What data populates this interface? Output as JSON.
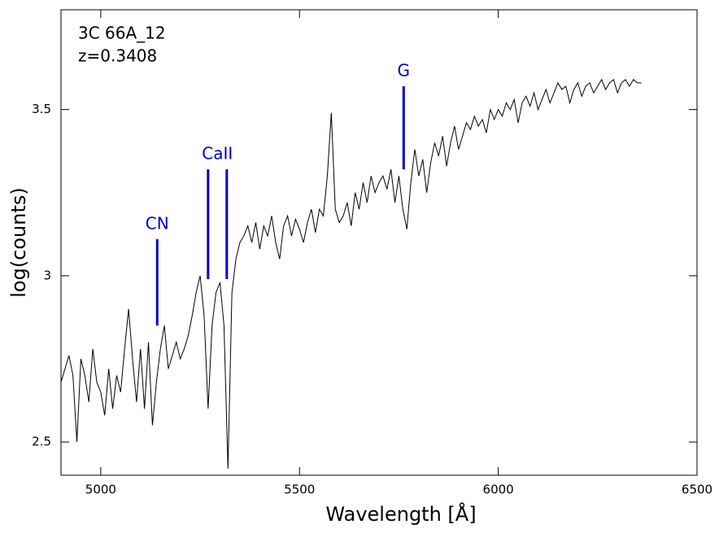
{
  "chart_data": {
    "type": "line",
    "title_lines": [
      "3C 66A_12",
      "z=0.3408"
    ],
    "x_label": "Wavelength [Å]",
    "y_label": "log(counts)",
    "xlim": [
      4900,
      6500
    ],
    "ylim": [
      2.4,
      3.8
    ],
    "xticks": [
      5000,
      5500,
      6000,
      6500
    ],
    "yticks": [
      2.5,
      3,
      3.5
    ],
    "color": "#000000",
    "marker_color": "#0000cc",
    "x": [
      4900,
      4910,
      4920,
      4930,
      4940,
      4950,
      4960,
      4970,
      4980,
      4990,
      5000,
      5010,
      5020,
      5030,
      5040,
      5050,
      5060,
      5070,
      5080,
      5090,
      5100,
      5110,
      5120,
      5130,
      5140,
      5150,
      5160,
      5170,
      5180,
      5190,
      5200,
      5210,
      5220,
      5230,
      5240,
      5250,
      5260,
      5270,
      5280,
      5290,
      5300,
      5310,
      5320,
      5330,
      5340,
      5350,
      5360,
      5370,
      5380,
      5390,
      5400,
      5410,
      5420,
      5430,
      5440,
      5450,
      5460,
      5470,
      5480,
      5490,
      5500,
      5510,
      5520,
      5530,
      5540,
      5550,
      5560,
      5570,
      5580,
      5590,
      5600,
      5610,
      5620,
      5630,
      5640,
      5650,
      5660,
      5670,
      5680,
      5690,
      5700,
      5710,
      5720,
      5730,
      5740,
      5750,
      5760,
      5770,
      5780,
      5790,
      5800,
      5810,
      5820,
      5830,
      5840,
      5850,
      5860,
      5870,
      5880,
      5890,
      5900,
      5910,
      5920,
      5930,
      5940,
      5950,
      5960,
      5970,
      5980,
      5990,
      6000,
      6010,
      6020,
      6030,
      6040,
      6050,
      6060,
      6070,
      6080,
      6090,
      6100,
      6110,
      6120,
      6130,
      6140,
      6150,
      6160,
      6170,
      6180,
      6190,
      6200,
      6210,
      6220,
      6230,
      6240,
      6250,
      6260,
      6270,
      6280,
      6290,
      6300,
      6310,
      6320,
      6330,
      6340,
      6350,
      6360
    ],
    "values": [
      2.68,
      2.72,
      2.76,
      2.7,
      2.5,
      2.75,
      2.7,
      2.62,
      2.78,
      2.68,
      2.65,
      2.58,
      2.72,
      2.6,
      2.7,
      2.65,
      2.78,
      2.9,
      2.75,
      2.62,
      2.78,
      2.6,
      2.8,
      2.55,
      2.68,
      2.78,
      2.85,
      2.72,
      2.76,
      2.8,
      2.75,
      2.78,
      2.82,
      2.88,
      2.95,
      3.0,
      2.88,
      2.6,
      2.85,
      2.95,
      2.98,
      2.85,
      2.42,
      2.95,
      3.05,
      3.1,
      3.12,
      3.15,
      3.1,
      3.16,
      3.08,
      3.15,
      3.12,
      3.18,
      3.1,
      3.05,
      3.15,
      3.18,
      3.12,
      3.17,
      3.14,
      3.1,
      3.16,
      3.2,
      3.13,
      3.2,
      3.18,
      3.3,
      3.49,
      3.2,
      3.16,
      3.18,
      3.22,
      3.15,
      3.25,
      3.2,
      3.28,
      3.22,
      3.3,
      3.25,
      3.28,
      3.3,
      3.26,
      3.32,
      3.22,
      3.3,
      3.2,
      3.14,
      3.28,
      3.38,
      3.3,
      3.35,
      3.25,
      3.34,
      3.4,
      3.36,
      3.42,
      3.33,
      3.4,
      3.45,
      3.38,
      3.42,
      3.46,
      3.44,
      3.48,
      3.45,
      3.47,
      3.43,
      3.5,
      3.47,
      3.5,
      3.48,
      3.52,
      3.5,
      3.53,
      3.46,
      3.52,
      3.54,
      3.51,
      3.55,
      3.5,
      3.53,
      3.56,
      3.52,
      3.55,
      3.58,
      3.56,
      3.57,
      3.52,
      3.56,
      3.58,
      3.54,
      3.57,
      3.58,
      3.55,
      3.57,
      3.59,
      3.56,
      3.58,
      3.59,
      3.55,
      3.58,
      3.59,
      3.57,
      3.59,
      3.58,
      3.58
    ],
    "line_markers": [
      {
        "label": "CN",
        "x": [
          5142
        ],
        "y": [
          2.85,
          3.11
        ]
      },
      {
        "label": "CaII",
        "x": [
          5270,
          5317
        ],
        "y": [
          2.99,
          3.32
        ]
      },
      {
        "label": "G",
        "x": [
          5762
        ],
        "y": [
          3.32,
          3.57
        ]
      }
    ]
  }
}
